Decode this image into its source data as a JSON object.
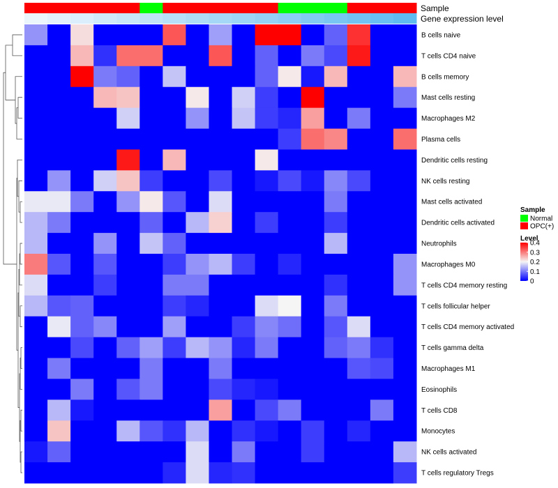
{
  "chart_data": {
    "type": "heatmap",
    "annotation_tracks": [
      {
        "name": "Sample",
        "values": [
          "OPC(+)",
          "OPC(+)",
          "OPC(+)",
          "OPC(+)",
          "OPC(+)",
          "Normal",
          "OPC(+)",
          "OPC(+)",
          "OPC(+)",
          "OPC(+)",
          "OPC(+)",
          "Normal",
          "Normal",
          "Normal",
          "OPC(+)",
          "OPC(+)",
          "OPC(+)"
        ]
      },
      {
        "name": "Gene expression level",
        "values": [
          0.0,
          0.06,
          0.12,
          0.18,
          0.24,
          0.3,
          0.36,
          0.42,
          0.48,
          0.54,
          0.6,
          0.66,
          0.72,
          0.78,
          0.84,
          0.9,
          0.96
        ]
      }
    ],
    "rows": [
      "B cells naive",
      "T cells CD4 naive",
      "B cells memory",
      "Mast cells resting",
      "Macrophages M2",
      "Plasma cells",
      "Dendritic cells resting",
      "NK cells resting",
      "Mast cells activated",
      "Dendritic cells activated",
      "Neutrophils",
      "Macrophages M0",
      "T cells CD4 memory resting",
      "T cells follicular helper",
      "T cells CD4 memory activated",
      "T cells gamma delta",
      "Macrophages M1",
      "Eosinophils",
      "T cells CD8",
      "Monocytes",
      "NK cells activated",
      "T cells regulatory  Tregs"
    ],
    "values": [
      [
        0.12,
        0.0,
        0.22,
        0.0,
        0.0,
        0.0,
        0.33,
        0.0,
        0.13,
        0.0,
        0.4,
        0.4,
        0.0,
        0.08,
        0.36,
        0.0,
        0.0
      ],
      [
        0.0,
        0.0,
        0.25,
        0.04,
        0.31,
        0.31,
        0.0,
        0.0,
        0.33,
        0.0,
        0.08,
        0.0,
        0.1,
        0.06,
        0.38,
        0.0,
        0.0
      ],
      [
        0.0,
        0.0,
        0.4,
        0.1,
        0.08,
        0.0,
        0.16,
        0.0,
        0.0,
        0.0,
        0.08,
        0.21,
        0.02,
        0.25,
        0.0,
        0.0,
        0.25
      ],
      [
        0.0,
        0.0,
        0.0,
        0.25,
        0.24,
        0.0,
        0.0,
        0.21,
        0.0,
        0.17,
        0.05,
        0.0,
        0.4,
        0.0,
        0.0,
        0.0,
        0.1
      ],
      [
        0.0,
        0.0,
        0.0,
        0.0,
        0.17,
        0.0,
        0.0,
        0.12,
        0.0,
        0.16,
        0.05,
        0.03,
        0.27,
        0.0,
        0.1,
        0.0,
        0.0
      ],
      [
        0.0,
        0.0,
        0.0,
        0.0,
        0.0,
        0.0,
        0.0,
        0.0,
        0.0,
        0.0,
        0.0,
        0.05,
        0.31,
        0.29,
        0.0,
        0.0,
        0.31
      ],
      [
        0.0,
        0.0,
        0.0,
        0.0,
        0.38,
        0.0,
        0.25,
        0.0,
        0.0,
        0.0,
        0.21,
        0.0,
        0.0,
        0.0,
        0.0,
        0.0,
        0.0
      ],
      [
        0.0,
        0.12,
        0.0,
        0.17,
        0.24,
        0.05,
        0.0,
        0.0,
        0.06,
        0.0,
        0.02,
        0.06,
        0.02,
        0.11,
        0.06,
        0.0,
        0.0
      ],
      [
        0.19,
        0.19,
        0.1,
        0.0,
        0.12,
        0.21,
        0.07,
        0.0,
        0.18,
        0.0,
        0.0,
        0.0,
        0.0,
        0.1,
        0.0,
        0.0,
        0.0
      ],
      [
        0.15,
        0.1,
        0.0,
        0.0,
        0.0,
        0.08,
        0.0,
        0.15,
        0.23,
        0.0,
        0.05,
        0.0,
        0.0,
        0.05,
        0.0,
        0.0,
        0.0
      ],
      [
        0.15,
        0.0,
        0.0,
        0.12,
        0.0,
        0.16,
        0.08,
        0.0,
        0.0,
        0.0,
        0.0,
        0.0,
        0.0,
        0.15,
        0.0,
        0.0,
        0.0
      ],
      [
        0.3,
        0.07,
        0.0,
        0.07,
        0.0,
        0.0,
        0.05,
        0.12,
        0.15,
        0.05,
        0.0,
        0.03,
        0.0,
        0.0,
        0.0,
        0.0,
        0.12
      ],
      [
        0.18,
        0.0,
        0.0,
        0.05,
        0.0,
        0.0,
        0.1,
        0.1,
        0.0,
        0.0,
        0.0,
        0.0,
        0.0,
        0.04,
        0.0,
        0.0,
        0.12
      ],
      [
        0.15,
        0.07,
        0.08,
        0.0,
        0.0,
        0.0,
        0.05,
        0.03,
        0.0,
        0.0,
        0.18,
        0.2,
        0.0,
        0.1,
        0.0,
        0.0,
        0.0
      ],
      [
        0.0,
        0.19,
        0.08,
        0.11,
        0.0,
        0.0,
        0.13,
        0.0,
        0.0,
        0.05,
        0.11,
        0.09,
        0.0,
        0.07,
        0.18,
        0.0,
        0.0
      ],
      [
        0.0,
        0.0,
        0.06,
        0.0,
        0.08,
        0.13,
        0.05,
        0.15,
        0.12,
        0.03,
        0.1,
        0.0,
        0.0,
        0.08,
        0.1,
        0.04,
        0.0
      ],
      [
        0.0,
        0.1,
        0.0,
        0.0,
        0.0,
        0.1,
        0.0,
        0.0,
        0.1,
        0.0,
        0.0,
        0.0,
        0.0,
        0.0,
        0.07,
        0.06,
        0.0
      ],
      [
        0.0,
        0.0,
        0.1,
        0.0,
        0.07,
        0.1,
        0.0,
        0.0,
        0.06,
        0.03,
        0.02,
        0.0,
        0.0,
        0.0,
        0.0,
        0.0,
        0.0
      ],
      [
        0.0,
        0.15,
        0.02,
        0.0,
        0.0,
        0.0,
        0.0,
        0.0,
        0.27,
        0.0,
        0.06,
        0.1,
        0.0,
        0.0,
        0.0,
        0.1,
        0.0
      ],
      [
        0.0,
        0.24,
        0.0,
        0.0,
        0.15,
        0.07,
        0.04,
        0.15,
        0.0,
        0.04,
        0.02,
        0.0,
        0.05,
        0.0,
        0.03,
        0.0,
        0.0
      ],
      [
        0.02,
        0.08,
        0.0,
        0.0,
        0.0,
        0.0,
        0.0,
        0.18,
        0.0,
        0.1,
        0.0,
        0.0,
        0.05,
        0.0,
        0.0,
        0.0,
        0.15
      ],
      [
        0.0,
        0.0,
        0.0,
        0.0,
        0.0,
        0.0,
        0.03,
        0.18,
        0.03,
        0.04,
        0.0,
        0.0,
        0.0,
        0.0,
        0.0,
        0.0,
        0.05
      ]
    ],
    "color_scale": {
      "min": 0,
      "max": 0.4,
      "low_color": "#0000ff",
      "mid_color": "#f5f5f5",
      "high_color": "#ff0000"
    },
    "legend": {
      "position": "right",
      "sample_title": "Sample",
      "sample_items": [
        {
          "label": "Normal",
          "color": "#00ff00"
        },
        {
          "label": "OPC(+)",
          "color": "#ff0000"
        }
      ],
      "level_title": "Level",
      "level_ticks": [
        "0.4",
        "0.3",
        "0.2",
        "0.1",
        "0"
      ]
    },
    "dendrogram": "rows"
  }
}
